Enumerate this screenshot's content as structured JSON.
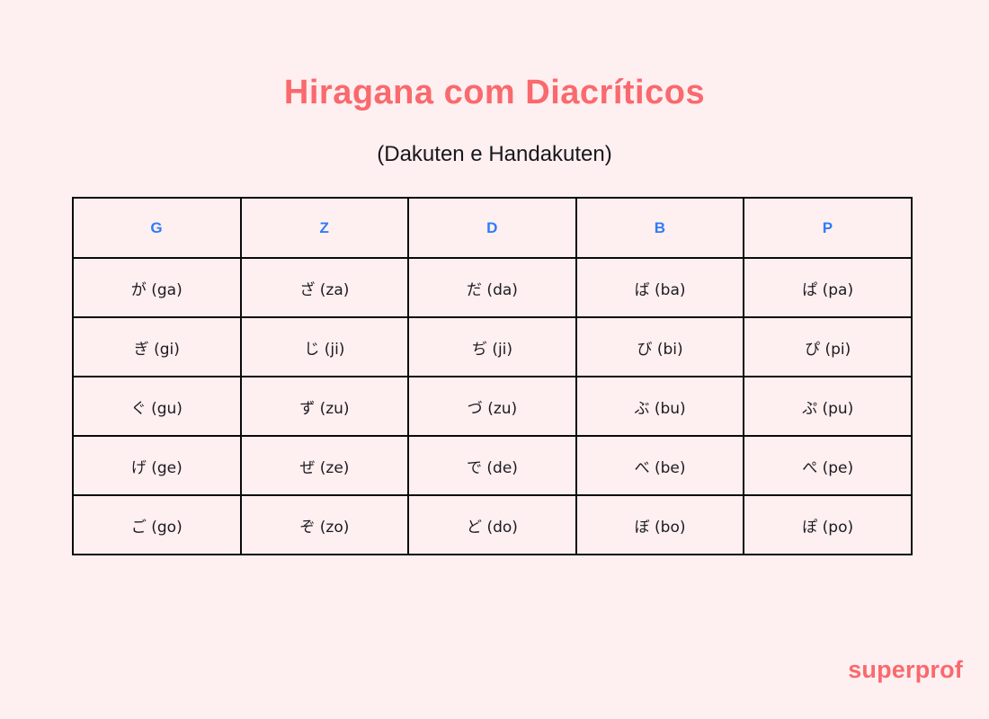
{
  "page": {
    "title": "Hiragana com Diacríticos",
    "subtitle": "(Dakuten e Handakuten)",
    "brand": "superprof",
    "background_color": "#feeff0",
    "title_color": "#f9696e",
    "subtitle_color": "#17181c",
    "brand_color": "#f9696e"
  },
  "table": {
    "header_color": "#2e7cf6",
    "border_color": "#0a0a0a",
    "cell_text_color": "#1b1b1f",
    "columns": [
      "G",
      "Z",
      "D",
      "B",
      "P"
    ],
    "rows": [
      [
        "が (ga)",
        "ざ (za)",
        "だ (da)",
        "ば (ba)",
        "ぱ (pa)"
      ],
      [
        "ぎ (gi)",
        "じ (ji)",
        "ぢ (ji)",
        "び (bi)",
        "ぴ (pi)"
      ],
      [
        "ぐ (gu)",
        "ず (zu)",
        "づ (zu)",
        "ぶ (bu)",
        "ぷ (pu)"
      ],
      [
        "げ (ge)",
        "ぜ (ze)",
        "で (de)",
        "べ (be)",
        "ぺ (pe)"
      ],
      [
        "ご (go)",
        "ぞ (zo)",
        "ど (do)",
        "ぼ (bo)",
        "ぽ (po)"
      ]
    ]
  }
}
